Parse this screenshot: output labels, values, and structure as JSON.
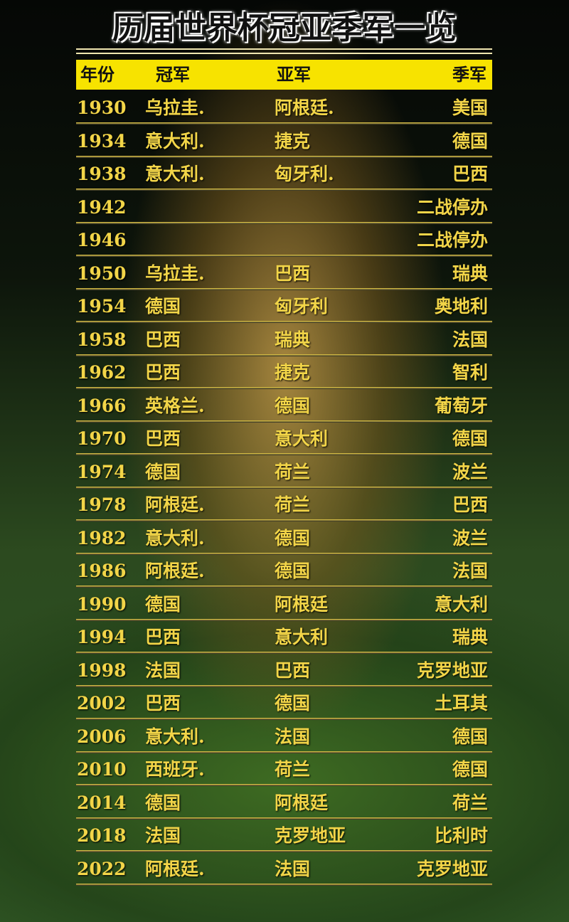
{
  "title": "历届世界杯冠亚季军一览",
  "table": {
    "header": [
      "年份",
      "冠军",
      "亚军",
      "季军"
    ],
    "rows": [
      [
        1930,
        "乌拉圭.",
        "阿根廷.",
        "美国"
      ],
      [
        1934,
        "意大利.",
        "捷克",
        "德国"
      ],
      [
        1938,
        "意大利.",
        "匈牙利.",
        "巴西"
      ],
      [
        1942,
        null,
        null,
        "二战停办"
      ],
      [
        1946,
        null,
        null,
        "二战停办"
      ],
      [
        1950,
        "乌拉圭.",
        "巴西",
        "瑞典"
      ],
      [
        1954,
        "德国",
        "匈牙利",
        "奥地利"
      ],
      [
        1958,
        "巴西",
        "瑞典",
        "法国"
      ],
      [
        1962,
        "巴西",
        "捷克",
        "智利"
      ],
      [
        1966,
        "英格兰.",
        "德国",
        "葡萄牙"
      ],
      [
        1970,
        "巴西",
        "意大利",
        "德国"
      ],
      [
        1974,
        "德国",
        "荷兰",
        "波兰"
      ],
      [
        1978,
        "阿根廷.",
        "荷兰",
        "巴西"
      ],
      [
        1982,
        "意大利.",
        "德国",
        "波兰"
      ],
      [
        1986,
        "阿根廷.",
        "德国",
        "法国"
      ],
      [
        1990,
        "德国",
        "阿根廷",
        "意大利"
      ],
      [
        1994,
        "巴西",
        "意大利",
        "瑞典"
      ],
      [
        1998,
        "法国",
        "巴西",
        "克罗地亚"
      ],
      [
        2002,
        "巴西",
        "德国",
        "土耳其"
      ],
      [
        2006,
        "意大利.",
        "法国",
        "德国"
      ],
      [
        2010,
        "西班牙.",
        "荷兰",
        "德国"
      ],
      [
        2014,
        "德国",
        "阿根廷",
        "荷兰"
      ],
      [
        2018,
        "法国",
        "克罗地亚",
        "比利时"
      ],
      [
        2022,
        "阿根廷.",
        "法国",
        "克罗地亚"
      ]
    ]
  }
}
